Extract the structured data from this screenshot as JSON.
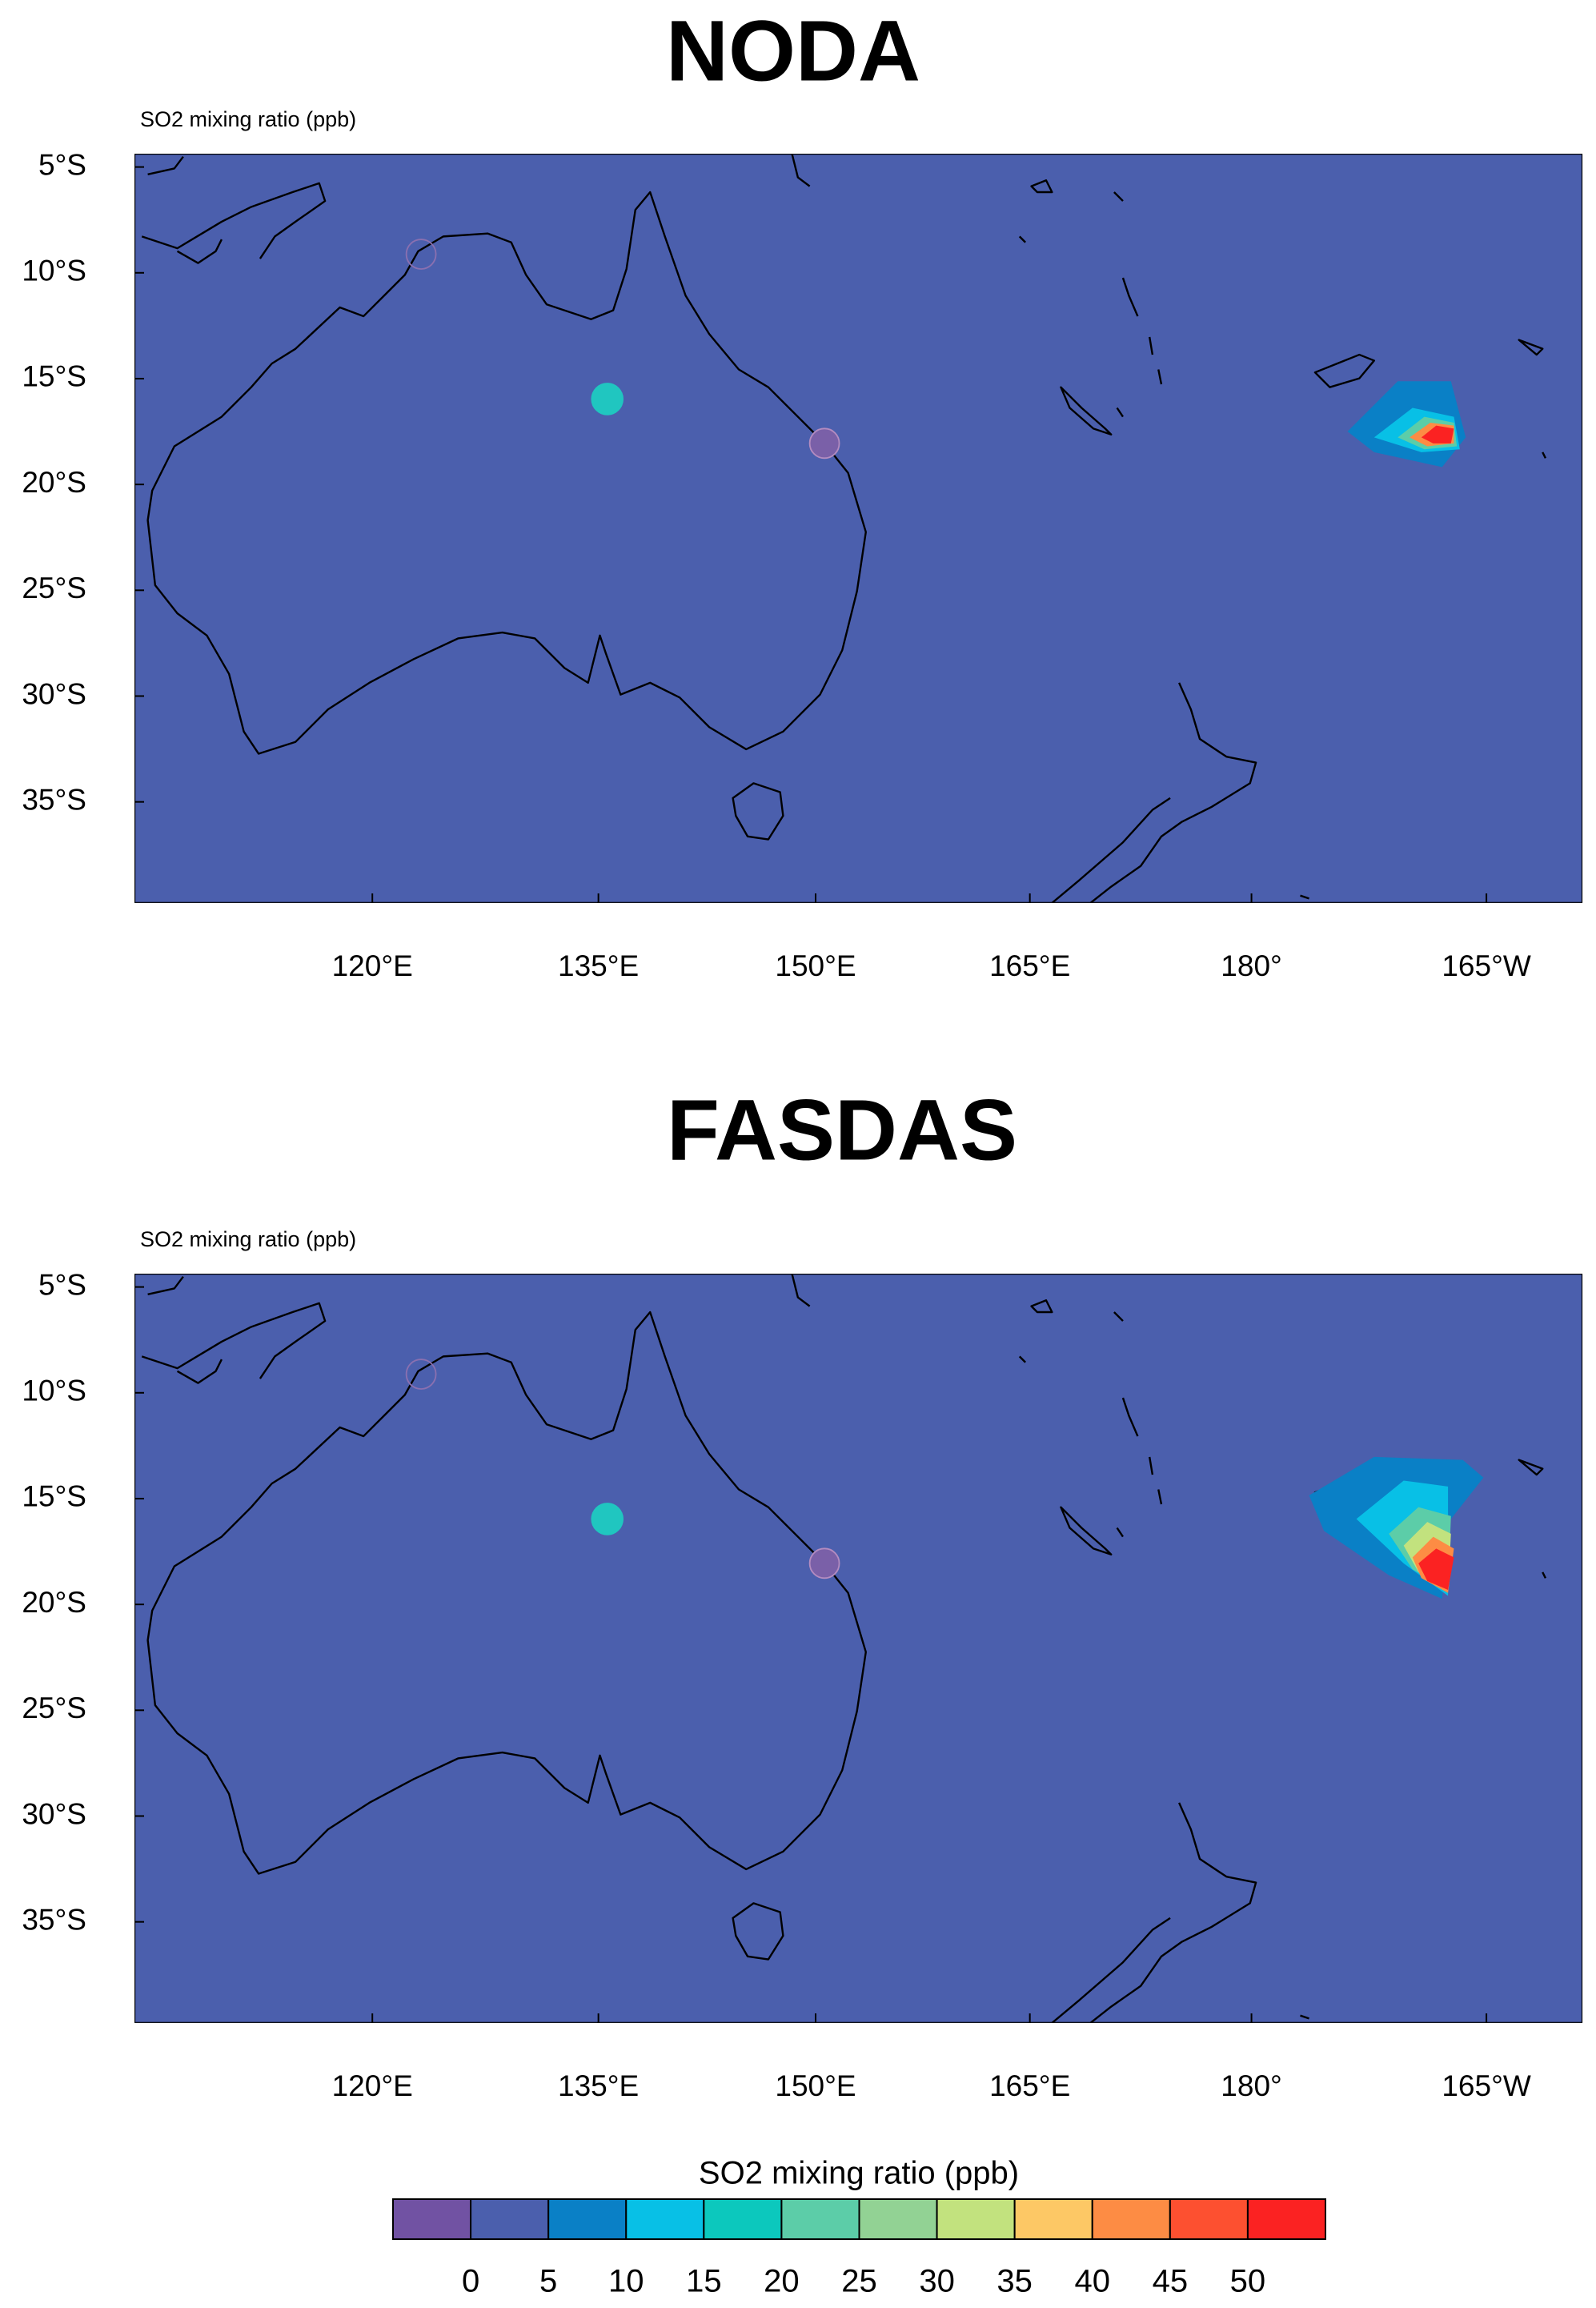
{
  "panels": [
    {
      "title": "NODA",
      "subtitle": "SO2 mixing ratio   (ppb)",
      "lat_labels": [
        "5°S",
        "10°S",
        "15°S",
        "20°S",
        "25°S",
        "30°S",
        "35°S"
      ],
      "lon_labels": [
        "120°E",
        "135°E",
        "150°E",
        "165°E",
        "180°",
        "165°W"
      ]
    },
    {
      "title": "FASDAS",
      "subtitle": "SO2 mixing ratio   (ppb)",
      "lat_labels": [
        "5°S",
        "10°S",
        "15°S",
        "20°S",
        "25°S",
        "30°S",
        "35°S"
      ],
      "lon_labels": [
        "120°E",
        "135°E",
        "150°E",
        "165°E",
        "180°",
        "165°W"
      ]
    }
  ],
  "colorbar": {
    "title": "SO2 mixing ratio  (ppb)",
    "labels": [
      0,
      5,
      10,
      15,
      20,
      25,
      30,
      35,
      40,
      45,
      50
    ],
    "colors": [
      "#7152a3",
      "#4b5fad",
      "#0a80c6",
      "#08c0e6",
      "#0cc8bd",
      "#5ccda8",
      "#92d294",
      "#c2e27e",
      "#fdc865",
      "#fd8c44",
      "#fd5030",
      "#fb2222"
    ]
  }
}
